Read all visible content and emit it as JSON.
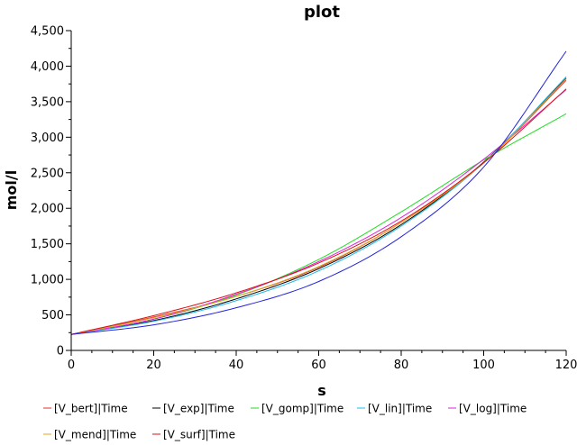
{
  "chart_data": {
    "type": "line",
    "title": "plot",
    "xlabel": "s",
    "ylabel": "mol/l",
    "xlim": [
      0,
      120
    ],
    "ylim": [
      0,
      4500
    ],
    "x_ticks": [
      0,
      20,
      40,
      60,
      80,
      100,
      120
    ],
    "y_ticks": [
      0,
      500,
      1000,
      1500,
      2000,
      2500,
      3000,
      3500,
      4000,
      4500
    ],
    "x_tick_labels": [
      "0",
      "20",
      "40",
      "60",
      "80",
      "100",
      "120"
    ],
    "y_tick_labels": [
      "0",
      "500",
      "1,000",
      "1,500",
      "2,000",
      "2,500",
      "3,000",
      "3,500",
      "4,000",
      "4,500"
    ],
    "grid": false,
    "legend_position": "bottom",
    "x": [
      0,
      20,
      40,
      60,
      80,
      100,
      120
    ],
    "series": [
      {
        "name": "[V_bert]|Time",
        "color": "#e03030",
        "values": [
          225,
          470,
          760,
          1170,
          1800,
          2640,
          3800
        ]
      },
      {
        "name": "[V_exp]|Time",
        "color": "#000000",
        "values": [
          225,
          420,
          725,
          1150,
          1770,
          2650,
          3830
        ]
      },
      {
        "name": "[V_gomp]|Time",
        "color": "#22dd22",
        "values": [
          225,
          440,
          780,
          1280,
          1950,
          2680,
          3330
        ]
      },
      {
        "name": "[V_lin]|Time",
        "color": "#22bbee",
        "values": [
          225,
          410,
          700,
          1120,
          1750,
          2640,
          3850
        ]
      },
      {
        "name": "[V_log]|Time",
        "color": "#dd22dd",
        "values": [
          225,
          440,
          790,
          1250,
          1870,
          2690,
          3670
        ]
      },
      {
        "name": "[V_mend]|Time",
        "color": "#ddaa22",
        "values": [
          225,
          460,
          760,
          1180,
          1800,
          2640,
          3820
        ]
      },
      {
        "name": "[V_surf]|Time",
        "color": "#dd1111",
        "values": [
          225,
          490,
          810,
          1230,
          1820,
          2640,
          3680
        ]
      },
      {
        "name": "",
        "color": "#2222dd",
        "values": [
          225,
          360,
          600,
          970,
          1600,
          2580,
          4210
        ]
      }
    ]
  }
}
